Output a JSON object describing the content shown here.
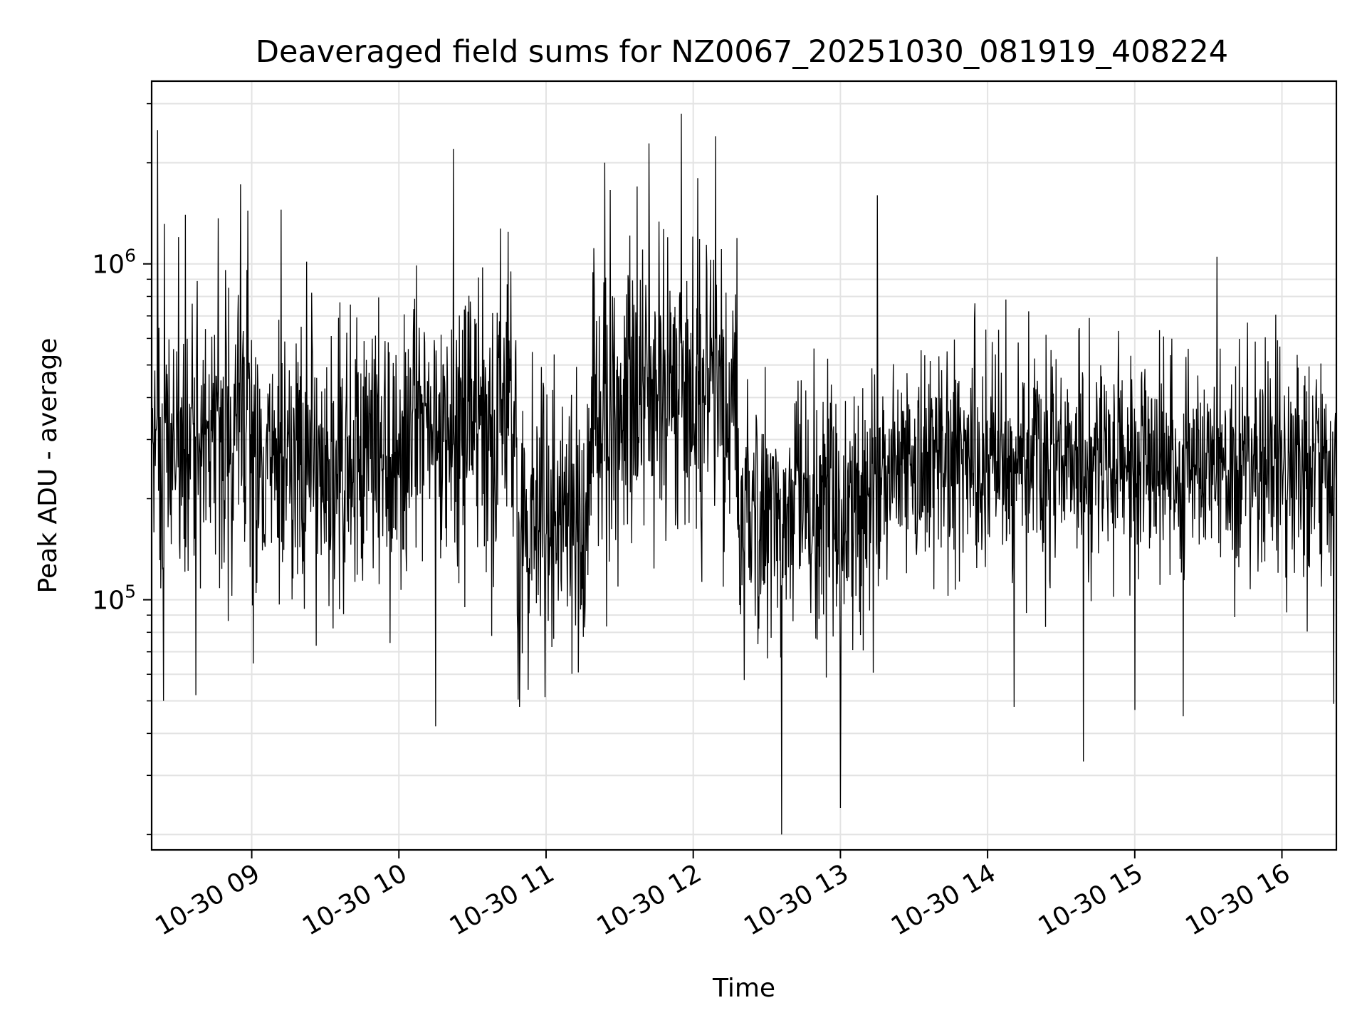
{
  "chart_data": {
    "type": "line",
    "title": "Deaveraged field sums for NZ0067_20251030_081919_408224",
    "xlabel": "Time",
    "ylabel": "Peak ADU - average",
    "yscale": "log",
    "ylim": [
      18000,
      3500000
    ],
    "xlim_hours": [
      8.32,
      16.37
    ],
    "grid": true,
    "line_color": "#000000",
    "x_ticks": [
      {
        "value": 9,
        "label": "10-30 09"
      },
      {
        "value": 10,
        "label": "10-30 10"
      },
      {
        "value": 11,
        "label": "10-30 11"
      },
      {
        "value": 12,
        "label": "10-30 12"
      },
      {
        "value": 13,
        "label": "10-30 13"
      },
      {
        "value": 14,
        "label": "10-30 14"
      },
      {
        "value": 15,
        "label": "10-30 15"
      },
      {
        "value": 16,
        "label": "10-30 16"
      }
    ],
    "y_ticks": [
      {
        "value": 100000,
        "base": "10",
        "exp": "5"
      },
      {
        "value": 1000000,
        "base": "10",
        "exp": "6"
      }
    ],
    "series": [
      {
        "name": "Peak ADU - average",
        "segments": [
          {
            "t0": 8.32,
            "t1": 9.0,
            "median": 290000,
            "spread": 0.55
          },
          {
            "t0": 9.0,
            "t1": 10.0,
            "median": 260000,
            "spread": 0.5
          },
          {
            "t0": 10.0,
            "t1": 10.8,
            "median": 330000,
            "spread": 0.55
          },
          {
            "t0": 10.8,
            "t1": 11.3,
            "median": 170000,
            "spread": 0.5
          },
          {
            "t0": 11.3,
            "t1": 12.3,
            "median": 400000,
            "spread": 0.55
          },
          {
            "t0": 12.3,
            "t1": 13.2,
            "median": 180000,
            "spread": 0.45
          },
          {
            "t0": 13.2,
            "t1": 16.37,
            "median": 260000,
            "spread": 0.4
          }
        ],
        "peaks": [
          {
            "t": 8.36,
            "v": 2500000
          },
          {
            "t": 8.55,
            "v": 1400000
          },
          {
            "t": 9.2,
            "v": 1450000
          },
          {
            "t": 10.37,
            "v": 2200000
          },
          {
            "t": 11.4,
            "v": 2000000
          },
          {
            "t": 11.62,
            "v": 1700000
          },
          {
            "t": 11.92,
            "v": 2800000
          },
          {
            "t": 12.15,
            "v": 2400000
          },
          {
            "t": 12.03,
            "v": 1800000
          },
          {
            "t": 13.25,
            "v": 1600000
          },
          {
            "t": 15.56,
            "v": 1050000
          }
        ],
        "dips": [
          {
            "t": 8.4,
            "v": 50000
          },
          {
            "t": 8.62,
            "v": 52000
          },
          {
            "t": 10.25,
            "v": 42000
          },
          {
            "t": 10.82,
            "v": 48000
          },
          {
            "t": 12.6,
            "v": 20000
          },
          {
            "t": 13.0,
            "v": 24000
          },
          {
            "t": 14.18,
            "v": 48000
          },
          {
            "t": 14.65,
            "v": 33000
          },
          {
            "t": 15.0,
            "v": 47000
          },
          {
            "t": 15.33,
            "v": 45000
          },
          {
            "t": 16.35,
            "v": 49000
          }
        ]
      }
    ]
  }
}
